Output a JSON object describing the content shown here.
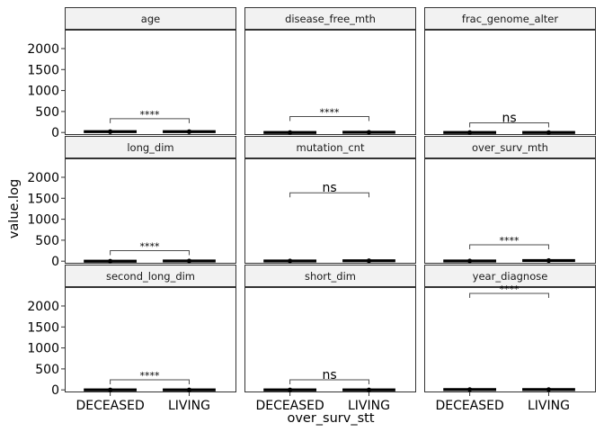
{
  "chart_data": {
    "type": "box",
    "layout": "facet-wrap 3x3",
    "xlabel": "over_surv_stt",
    "ylabel": "value.log",
    "categories": [
      "DECEASED",
      "LIVING"
    ],
    "ylim": [
      -60,
      2450
    ],
    "yticks": [
      0,
      500,
      1000,
      1500,
      2000
    ],
    "panels": [
      {
        "name": "age",
        "values": [
          20,
          20
        ],
        "sig": {
          "label": "****",
          "y": 330
        }
      },
      {
        "name": "disease_free_mth",
        "values": [
          0,
          5
        ],
        "sig": {
          "label": "****",
          "y": 380
        }
      },
      {
        "name": "frac_genome_alter",
        "values": [
          0,
          0
        ],
        "sig": {
          "label": "ns",
          "y": 230
        }
      },
      {
        "name": "long_dim",
        "values": [
          0,
          5
        ],
        "sig": {
          "label": "****",
          "y": 250
        }
      },
      {
        "name": "mutation_cnt",
        "values": [
          5,
          10
        ],
        "sig": {
          "label": "ns",
          "y": 1630
        }
      },
      {
        "name": "over_surv_mth",
        "values": [
          5,
          15
        ],
        "sig": {
          "label": "****",
          "y": 390
        }
      },
      {
        "name": "second_long_dim",
        "values": [
          0,
          0
        ],
        "sig": {
          "label": "****",
          "y": 240
        }
      },
      {
        "name": "short_dim",
        "values": [
          0,
          0
        ],
        "sig": {
          "label": "ns",
          "y": 240
        }
      },
      {
        "name": "year_diagnose",
        "values": [
          8,
          8
        ],
        "sig": {
          "label": "****",
          "y": 2300
        }
      }
    ],
    "grid": false,
    "theme": "bw strips"
  },
  "colors": {
    "strip_fill": "#f2f2f2",
    "border": "#333333",
    "box": "#000000",
    "bracket": "#4d4d4d"
  }
}
